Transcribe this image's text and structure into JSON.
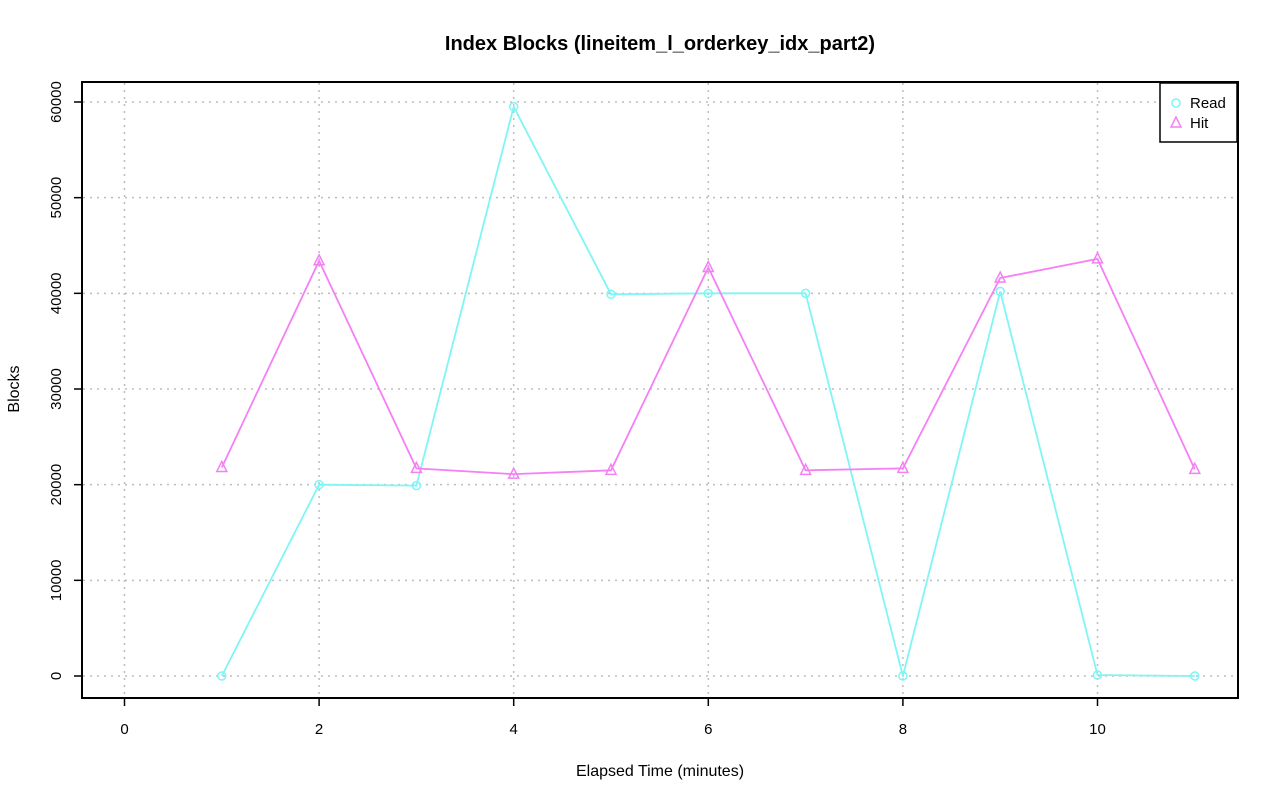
{
  "chart_data": {
    "type": "line",
    "title": "Index Blocks (lineitem_l_orderkey_idx_part2)",
    "xlabel": "Elapsed Time (minutes)",
    "ylabel": "Blocks",
    "xlim": [
      0,
      11
    ],
    "ylim": [
      0,
      60000
    ],
    "xticks": [
      0,
      2,
      4,
      6,
      8,
      10
    ],
    "yticks": [
      0,
      10000,
      20000,
      30000,
      40000,
      50000,
      60000
    ],
    "grid": true,
    "legend_position": "top-right",
    "series": [
      {
        "name": "Read",
        "color": "#7ff5f5",
        "marker": "circle",
        "x": [
          1,
          2,
          3,
          4,
          5,
          6,
          7,
          8,
          9,
          10,
          11
        ],
        "y": [
          0,
          20000,
          19900,
          59500,
          39900,
          40000,
          40000,
          0,
          40200,
          100,
          0
        ]
      },
      {
        "name": "Hit",
        "color": "#f57ff5",
        "marker": "triangle",
        "x": [
          1,
          2,
          3,
          4,
          5,
          6,
          7,
          8,
          9,
          10,
          11
        ],
        "y": [
          21800,
          43400,
          21700,
          21100,
          21500,
          42700,
          21500,
          21700,
          41600,
          43600,
          21600
        ]
      }
    ]
  }
}
